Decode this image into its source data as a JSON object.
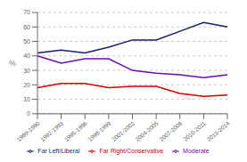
{
  "chart_data": {
    "type": "line",
    "ylabel": "%",
    "categories": [
      "1989-1990",
      "1992-1993",
      "1995-1996",
      "1998-1999",
      "2001-2002",
      "2004-2005",
      "2007-2008",
      "2010-2011",
      "2013-2014"
    ],
    "series": [
      {
        "name": "Far Left/Liberal",
        "color": "#1a1a6e",
        "values": [
          42,
          44,
          42,
          46,
          51,
          51,
          57,
          63,
          60
        ]
      },
      {
        "name": "Moderate",
        "color": "#6a0dad",
        "values": [
          40,
          35,
          38,
          38,
          30,
          28,
          27,
          25,
          27
        ]
      },
      {
        "name": "Far Right/Conservative",
        "color": "#cc0000",
        "values": [
          18,
          21,
          21,
          18,
          19,
          19,
          14,
          12,
          13
        ]
      }
    ],
    "ylim": [
      0,
      70
    ],
    "yticks": [
      0,
      10,
      20,
      30,
      40,
      50,
      60,
      70
    ],
    "grid": true,
    "legend": "bottom"
  }
}
